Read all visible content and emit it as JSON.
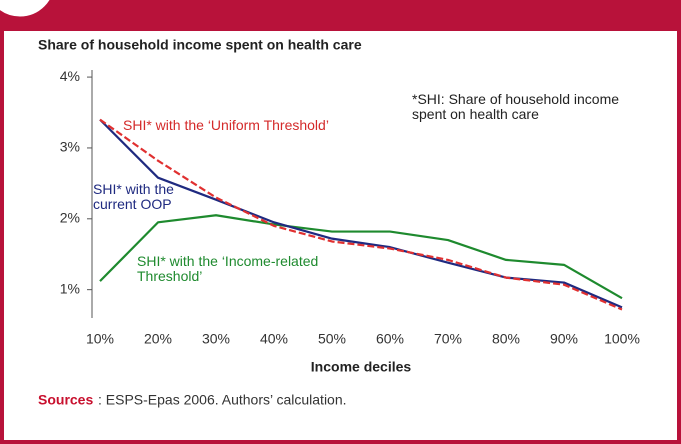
{
  "chart_data": {
    "type": "line",
    "y_label": "Share of household income spent on health care",
    "x_label": "Income deciles",
    "annotation": "*SHI: Share of household  income spent on health care",
    "categories": [
      "10%",
      "20%",
      "30%",
      "40%",
      "50%",
      "60%",
      "70%",
      "80%",
      "90%",
      "100%"
    ],
    "series": [
      {
        "name": "SHI* with the ‘Uniform Threshold’",
        "color": "#e03030",
        "dash": true,
        "values": [
          3.4,
          2.82,
          2.3,
          1.9,
          1.68,
          1.58,
          1.42,
          1.17,
          1.07,
          0.72
        ]
      },
      {
        "name": "SHI* with the current OOP",
        "color": "#1f2a80",
        "values": [
          3.4,
          2.58,
          2.27,
          1.95,
          1.72,
          1.6,
          1.38,
          1.17,
          1.1,
          0.75
        ]
      },
      {
        "name": "SHI* with the ‘Income-related Threshold’",
        "color": "#1e8a2e",
        "values": [
          1.12,
          1.95,
          2.05,
          1.92,
          1.82,
          1.82,
          1.7,
          1.42,
          1.35,
          0.88
        ]
      }
    ],
    "ylim": [
      0.6,
      4.1
    ],
    "yticks": [
      {
        "value": 1,
        "label": "1%"
      },
      {
        "value": 2,
        "label": "2%"
      },
      {
        "value": 3,
        "label": "3%"
      },
      {
        "value": 4,
        "label": "4%"
      }
    ]
  },
  "footer": {
    "label": "Sources",
    "text": ": ESPS-Epas 2006. Authors’ calculation."
  }
}
